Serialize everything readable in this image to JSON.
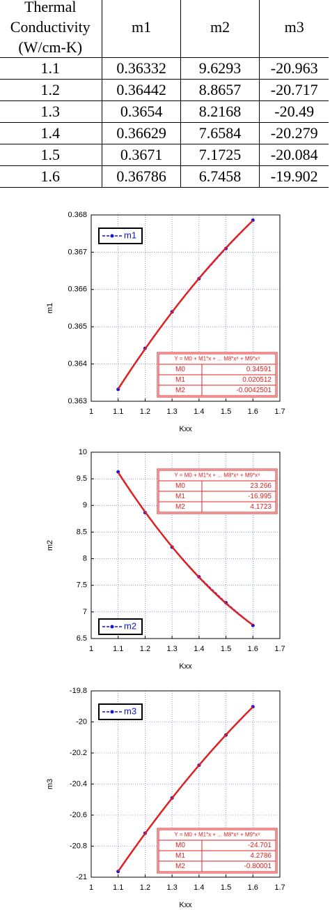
{
  "table": {
    "header": [
      "Thermal Conductivity (W/cm-K)",
      "m1",
      "m2",
      "m3"
    ],
    "rows": [
      [
        "1.1",
        "0.36332",
        "9.6293",
        "-20.963"
      ],
      [
        "1.2",
        "0.36442",
        "8.8657",
        "-20.717"
      ],
      [
        "1.3",
        "0.3654",
        "8.2168",
        "-20.49"
      ],
      [
        "1.4",
        "0.36629",
        "7.6584",
        "-20.279"
      ],
      [
        "1.5",
        "0.3671",
        "7.1725",
        "-20.084"
      ],
      [
        "1.6",
        "0.36786",
        "6.7458",
        "-19.902"
      ]
    ]
  },
  "chart_data": [
    {
      "type": "line",
      "xlabel": "Kxx",
      "ylabel": "m1",
      "x": [
        1.1,
        1.2,
        1.3,
        1.4,
        1.5,
        1.6
      ],
      "series": [
        {
          "name": "m1",
          "color": "#1010e0",
          "values": [
            0.36332,
            0.36442,
            0.3654,
            0.36629,
            0.3671,
            0.36786
          ]
        }
      ],
      "xlim": [
        1,
        1.7
      ],
      "xticks": [
        1,
        1.1,
        1.2,
        1.3,
        1.4,
        1.5,
        1.6,
        1.7
      ],
      "ylim": [
        0.363,
        0.368
      ],
      "yticks": [
        0.363,
        0.364,
        0.365,
        0.366,
        0.367,
        0.368
      ],
      "grid": true,
      "legend": "upper left",
      "fit": {
        "title": "Y = M0 + M1*x + ... M8*x⁸ + M9*x⁹",
        "color": "#e02020",
        "terms": [
          "M0",
          "M1",
          "M2"
        ],
        "values": [
          0.34591,
          0.020512,
          -0.0042501
        ]
      }
    },
    {
      "type": "line",
      "xlabel": "Kxx",
      "ylabel": "m2",
      "x": [
        1.1,
        1.2,
        1.3,
        1.4,
        1.5,
        1.6
      ],
      "series": [
        {
          "name": "m2",
          "color": "#1010e0",
          "values": [
            9.6293,
            8.8657,
            8.2168,
            7.6584,
            7.1725,
            6.7458
          ]
        }
      ],
      "xlim": [
        1,
        1.7
      ],
      "xticks": [
        1,
        1.1,
        1.2,
        1.3,
        1.4,
        1.5,
        1.6,
        1.7
      ],
      "ylim": [
        6.5,
        10
      ],
      "yticks": [
        6.5,
        7,
        7.5,
        8,
        8.5,
        9,
        9.5,
        10
      ],
      "grid": true,
      "legend": "lower left",
      "fit": {
        "title": "Y = M0 + M1*x + ... M8*x⁸ + M9*x⁹",
        "color": "#e02020",
        "terms": [
          "M0",
          "M1",
          "M2"
        ],
        "values": [
          23.266,
          -16.995,
          4.1723
        ]
      }
    },
    {
      "type": "line",
      "xlabel": "Kxx",
      "ylabel": "m3",
      "x": [
        1.1,
        1.2,
        1.3,
        1.4,
        1.5,
        1.6
      ],
      "series": [
        {
          "name": "m3",
          "color": "#1010e0",
          "values": [
            -20.963,
            -20.717,
            -20.49,
            -20.279,
            -20.084,
            -19.902
          ]
        }
      ],
      "xlim": [
        1,
        1.7
      ],
      "xticks": [
        1,
        1.1,
        1.2,
        1.3,
        1.4,
        1.5,
        1.6,
        1.7
      ],
      "ylim": [
        -21,
        -19.8
      ],
      "yticks": [
        -21,
        -20.8,
        -20.6,
        -20.4,
        -20.2,
        -20,
        -19.8
      ],
      "grid": true,
      "legend": "upper left",
      "fit": {
        "title": "Y = M0 + M1*x + ... M8*x⁸ + M9*x⁹",
        "color": "#e02020",
        "terms": [
          "M0",
          "M1",
          "M2"
        ],
        "values": [
          -24.701,
          4.2786,
          -0.80001
        ]
      }
    }
  ]
}
